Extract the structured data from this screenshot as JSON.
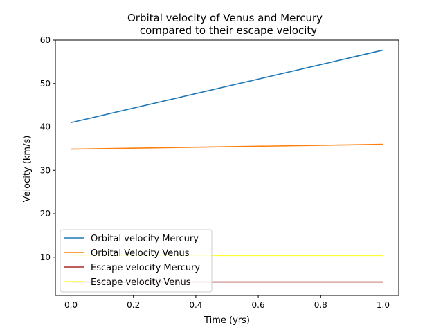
{
  "chart_data": {
    "type": "line",
    "title_line1": "Orbital velocity of Venus and Mercury",
    "title_line2": "compared to their escape velocity",
    "xlabel": "Time (yrs)",
    "ylabel": "Velocity (km/s)",
    "xlim": [
      -0.05,
      1.05
    ],
    "ylim": [
      1.2,
      60.0
    ],
    "xticks": [
      "0.0",
      "0.2",
      "0.4",
      "0.6",
      "0.8",
      "1.0"
    ],
    "yticks": [
      "10",
      "20",
      "30",
      "40",
      "50",
      "60"
    ],
    "grid": false,
    "legend_position": "lower-left",
    "series": [
      {
        "name": "Orbital velocity Mercury",
        "color": "#1f77b4",
        "x": [
          0.0,
          1.0
        ],
        "y": [
          41.0,
          57.7
        ]
      },
      {
        "name": "Orbital Velocity Venus",
        "color": "#ff7f0e",
        "x": [
          0.0,
          1.0
        ],
        "y": [
          34.9,
          36.0
        ]
      },
      {
        "name": "Escape velocity Mercury",
        "color": "#a52a2a",
        "x": [
          0.0,
          1.0
        ],
        "y": [
          4.3,
          4.3
        ]
      },
      {
        "name": "Escape velocity Venus",
        "color": "#ffff33",
        "x": [
          0.0,
          1.0
        ],
        "y": [
          10.4,
          10.4
        ]
      }
    ]
  }
}
